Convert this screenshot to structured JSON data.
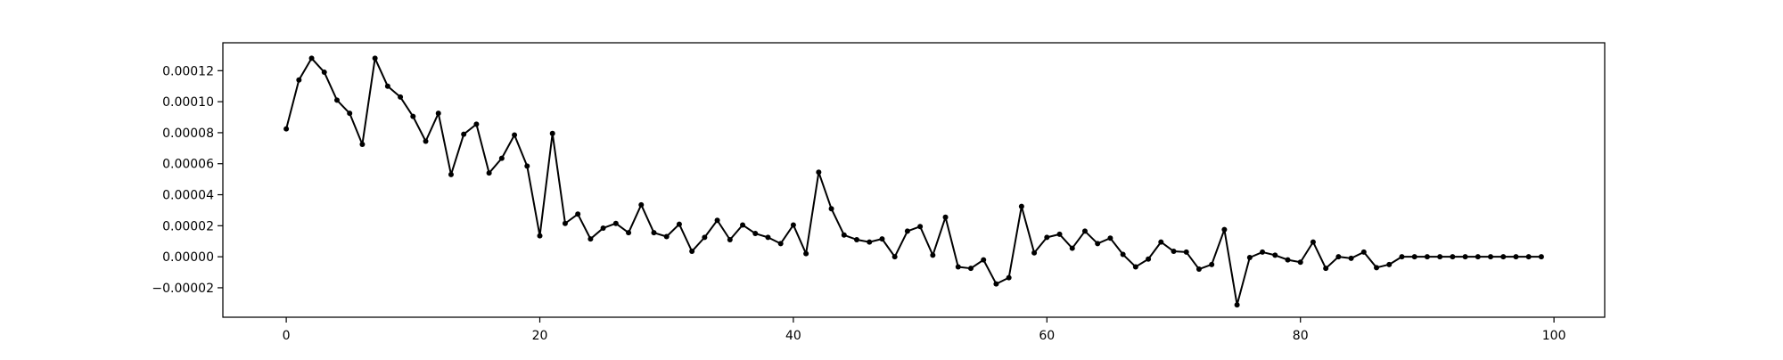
{
  "chart_data": {
    "type": "line",
    "title": "",
    "xlabel": "",
    "ylabel": "",
    "xlim": [
      -5,
      104
    ],
    "ylim": [
      -3.9e-05,
      0.000138
    ],
    "grid": false,
    "legend": "none",
    "colors": {
      "line": "#000000",
      "marker": "#000000",
      "axes": "#000000",
      "background": "#ffffff"
    },
    "xticks": [
      {
        "value": 0,
        "label": "0"
      },
      {
        "value": 20,
        "label": "20"
      },
      {
        "value": 40,
        "label": "40"
      },
      {
        "value": 60,
        "label": "60"
      },
      {
        "value": 80,
        "label": "80"
      },
      {
        "value": 100,
        "label": "100"
      }
    ],
    "yticks": [
      {
        "value": 0.00012,
        "label": "0.00012"
      },
      {
        "value": 0.0001,
        "label": "0.00010"
      },
      {
        "value": 8e-05,
        "label": "0.00008"
      },
      {
        "value": 6e-05,
        "label": "0.00006"
      },
      {
        "value": 4e-05,
        "label": "0.00004"
      },
      {
        "value": 2e-05,
        "label": "0.00002"
      },
      {
        "value": 0,
        "label": "0.00000"
      },
      {
        "value": -2e-05,
        "label": "−0.00002"
      }
    ],
    "series": [
      {
        "marker": "circle",
        "x": [
          0,
          1,
          2,
          3,
          4,
          5,
          6,
          7,
          8,
          9,
          10,
          11,
          12,
          13,
          14,
          15,
          16,
          17,
          18,
          19,
          20,
          21,
          22,
          23,
          24,
          25,
          26,
          27,
          28,
          29,
          30,
          31,
          32,
          33,
          34,
          35,
          36,
          37,
          38,
          39,
          40,
          41,
          42,
          43,
          44,
          45,
          46,
          47,
          48,
          49,
          50,
          51,
          52,
          53,
          54,
          55,
          56,
          57,
          58,
          59,
          60,
          61,
          62,
          63,
          64,
          65,
          66,
          67,
          68,
          69,
          70,
          71,
          72,
          73,
          74,
          75,
          76,
          77,
          78,
          79,
          80,
          81,
          82,
          83,
          84,
          85,
          86,
          87,
          88,
          89,
          90,
          91,
          92,
          93,
          94,
          95,
          96,
          97,
          98,
          99
        ],
        "y": [
          8.25e-05,
          0.000114,
          0.000128,
          0.000119,
          0.000101,
          9.25e-05,
          7.25e-05,
          0.000128,
          0.00011,
          0.000103,
          9.05e-05,
          7.45e-05,
          9.25e-05,
          5.3e-05,
          7.9e-05,
          8.55e-05,
          5.4e-05,
          6.35e-05,
          7.85e-05,
          5.85e-05,
          1.35e-05,
          7.95e-05,
          2.15e-05,
          2.75e-05,
          1.15e-05,
          1.85e-05,
          2.15e-05,
          1.55e-05,
          3.35e-05,
          1.55e-05,
          1.3e-05,
          2.1e-05,
          3.5e-06,
          1.25e-05,
          2.35e-05,
          1.1e-05,
          2.05e-05,
          1.5e-05,
          1.25e-05,
          8.5e-06,
          2.05e-05,
          2e-06,
          5.45e-05,
          3.1e-05,
          1.4e-05,
          1.1e-05,
          9.5e-06,
          1.15e-05,
          0,
          1.65e-05,
          1.95e-05,
          1e-06,
          2.55e-05,
          -6.5e-06,
          -7.5e-06,
          -2e-06,
          -1.75e-05,
          -1.35e-05,
          3.25e-05,
          2.5e-06,
          1.25e-05,
          1.45e-05,
          5.5e-06,
          1.65e-05,
          8.5e-06,
          1.2e-05,
          1.5e-06,
          -6.5e-06,
          -1.5e-06,
          9.5e-06,
          3.5e-06,
          3e-06,
          -8e-06,
          -5e-06,
          1.75e-05,
          -3.1e-05,
          -5e-07,
          3e-06,
          1e-06,
          -2e-06,
          -3.5e-06,
          9.5e-06,
          -7.5e-06,
          0,
          -1e-06,
          3e-06,
          -7e-06,
          -5e-06,
          0,
          0,
          0,
          0,
          0,
          0,
          0,
          0,
          0,
          0,
          0,
          0
        ]
      }
    ]
  }
}
